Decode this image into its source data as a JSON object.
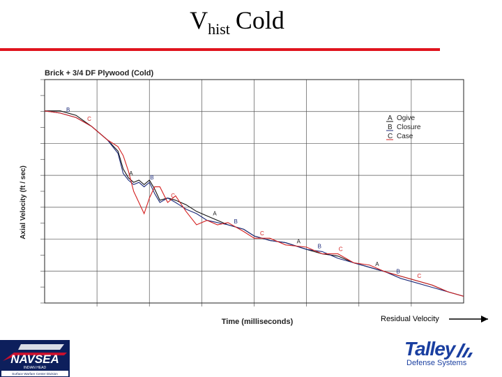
{
  "slide": {
    "title_main": "V",
    "title_sub": "hist",
    "title_tail": "Cold",
    "residual_label": "Residual Velocity"
  },
  "logos": {
    "navsea": {
      "name": "NAVSEA",
      "line1": "INDIAN HEAD",
      "line2": "Surface Warfare Center Division"
    },
    "talley": {
      "name": "Talley",
      "sub": "Defense Systems"
    }
  },
  "colors": {
    "accent_rule": "#e0141e",
    "ogive": "#111111",
    "closure": "#1c2a7a",
    "case": "#d42020",
    "talley_blue": "#1a3fa0"
  },
  "chart_data": {
    "type": "line",
    "title": "Brick + 3/4 DF Plywood (Cold)",
    "xlabel": "Time (milliseconds)",
    "ylabel": "Axial Velocity (ft / sec)",
    "grid": true,
    "legend_position": "top-right",
    "x_range": [
      0,
      8
    ],
    "y_range": [
      0,
      1
    ],
    "notes": "No numeric tick labels are shown; values are normalized fractions of each axis.",
    "legend": [
      {
        "letter": "A",
        "label": "Ogive"
      },
      {
        "letter": "B",
        "label": "Closure"
      },
      {
        "letter": "C",
        "label": "Case"
      }
    ],
    "series": [
      {
        "name": "Ogive",
        "marker": "A",
        "x": [
          0,
          0.3,
          0.6,
          0.9,
          1.2,
          1.4,
          1.5,
          1.6,
          1.7,
          1.8,
          1.9,
          2.0,
          2.1,
          2.2,
          2.35,
          2.5,
          2.7,
          2.9,
          3.1,
          3.3,
          3.5,
          3.8,
          4.0,
          4.3,
          4.6,
          5.0,
          5.3,
          5.6,
          5.9,
          6.2,
          6.5,
          6.8,
          7.1,
          7.4,
          7.7,
          8.0
        ],
        "y": [
          0.86,
          0.86,
          0.84,
          0.79,
          0.73,
          0.68,
          0.6,
          0.56,
          0.54,
          0.55,
          0.53,
          0.55,
          0.51,
          0.46,
          0.47,
          0.46,
          0.44,
          0.41,
          0.39,
          0.37,
          0.35,
          0.33,
          0.3,
          0.28,
          0.27,
          0.24,
          0.22,
          0.21,
          0.18,
          0.16,
          0.14,
          0.12,
          0.1,
          0.08,
          0.05,
          0.03
        ],
        "marker_x": [
          1.6,
          3.2,
          4.8,
          6.3
        ]
      },
      {
        "name": "Closure",
        "marker": "B",
        "x": [
          0,
          0.3,
          0.6,
          0.9,
          1.2,
          1.4,
          1.5,
          1.6,
          1.7,
          1.8,
          1.9,
          2.0,
          2.1,
          2.2,
          2.35,
          2.5,
          2.7,
          2.9,
          3.1,
          3.3,
          3.5,
          3.8,
          4.0,
          4.3,
          4.6,
          5.0,
          5.3,
          5.6,
          5.9,
          6.2,
          6.5,
          6.8,
          7.1,
          7.4,
          7.7,
          8.0
        ],
        "y": [
          0.86,
          0.85,
          0.83,
          0.79,
          0.73,
          0.67,
          0.58,
          0.55,
          0.53,
          0.54,
          0.52,
          0.54,
          0.49,
          0.45,
          0.47,
          0.45,
          0.42,
          0.4,
          0.37,
          0.36,
          0.35,
          0.33,
          0.3,
          0.28,
          0.27,
          0.24,
          0.23,
          0.2,
          0.18,
          0.16,
          0.14,
          0.11,
          0.09,
          0.07,
          0.05,
          0.03
        ],
        "marker_x": [
          0.4,
          2.0,
          3.6,
          5.2,
          6.7
        ]
      },
      {
        "name": "Case",
        "marker": "C",
        "x": [
          0,
          0.3,
          0.6,
          0.9,
          1.2,
          1.4,
          1.5,
          1.6,
          1.7,
          1.8,
          1.9,
          2.0,
          2.1,
          2.2,
          2.35,
          2.5,
          2.7,
          2.9,
          3.1,
          3.3,
          3.5,
          3.8,
          4.0,
          4.3,
          4.6,
          5.0,
          5.3,
          5.6,
          5.9,
          6.2,
          6.5,
          6.8,
          7.1,
          7.4,
          7.7,
          8.0
        ],
        "y": [
          0.86,
          0.85,
          0.83,
          0.79,
          0.73,
          0.7,
          0.66,
          0.59,
          0.5,
          0.45,
          0.4,
          0.47,
          0.52,
          0.52,
          0.45,
          0.48,
          0.41,
          0.35,
          0.37,
          0.35,
          0.36,
          0.32,
          0.29,
          0.29,
          0.26,
          0.25,
          0.22,
          0.22,
          0.18,
          0.17,
          0.14,
          0.12,
          0.1,
          0.08,
          0.05,
          0.03
        ],
        "marker_x": [
          0.8,
          2.4,
          4.1,
          5.6,
          7.1
        ]
      }
    ]
  }
}
